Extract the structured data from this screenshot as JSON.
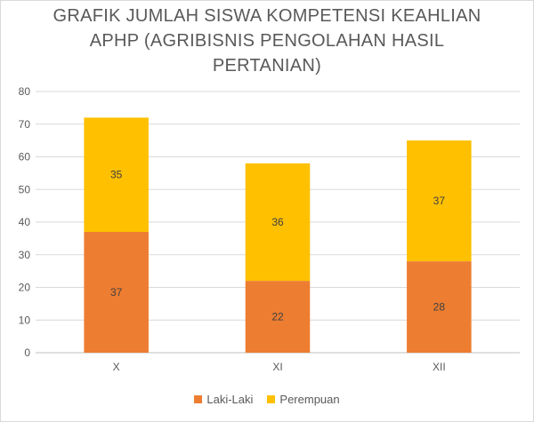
{
  "chart_data": {
    "type": "bar",
    "stacked": true,
    "title_lines": [
      "GRAFIK JUMLAH SISWA KOMPETENSI KEAHLIAN",
      "APHP (AGRIBISNIS PENGOLAHAN HASIL",
      "PERTANIAN)"
    ],
    "categories": [
      "X",
      "XI",
      "XII"
    ],
    "series": [
      {
        "name": "Laki-Laki",
        "values": [
          37,
          22,
          28
        ],
        "color": "#ed7d31"
      },
      {
        "name": "Perempuan",
        "values": [
          35,
          36,
          37
        ],
        "color": "#ffc000"
      }
    ],
    "ylim": [
      0,
      80
    ],
    "yticks": [
      0,
      10,
      20,
      30,
      40,
      50,
      60,
      70,
      80
    ],
    "grid": true,
    "legend_position": "bottom",
    "data_labels": true
  }
}
